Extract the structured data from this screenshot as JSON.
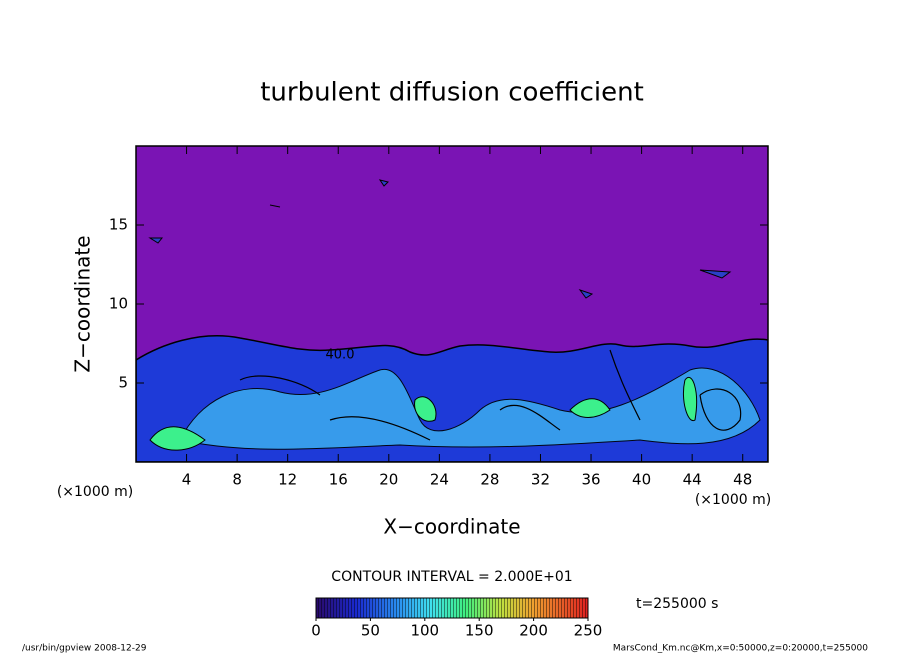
{
  "chart_data": {
    "type": "contour",
    "title": "turbulent diffusion coefficient",
    "x_label": "X−coordinate",
    "y_label": "Z−coordinate",
    "x_unit": "(×1000 m)",
    "y_unit": "(×1000 m)",
    "xlim": [
      0,
      50
    ],
    "xticks": [
      4,
      8,
      12,
      16,
      20,
      24,
      28,
      32,
      36,
      40,
      44,
      48
    ],
    "ylim": [
      0,
      20
    ],
    "yticks": [
      5,
      10,
      15
    ],
    "contour_label": {
      "value": 40,
      "label": "40.0"
    },
    "contour_interval_label": "CONTOUR INTERVAL = 2.000E+01",
    "colorbar": {
      "lim": [
        0,
        250
      ],
      "ticks": [
        0,
        50,
        100,
        150,
        200,
        250
      ]
    },
    "time_label": "t=255000 s",
    "footer_left": "/usr/bin/gpview  2008-12-29",
    "footer_right": "MarsCond_Km.nc@Km,x=0:50000,z=0:20000,t=255000"
  }
}
